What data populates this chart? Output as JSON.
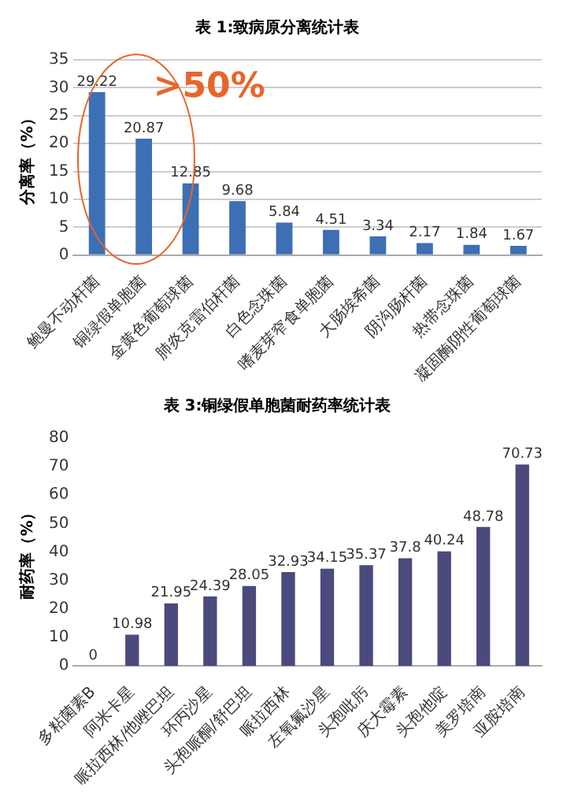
{
  "chart_data": [
    {
      "type": "bar",
      "title": "表 1:致病原分离统计表",
      "ylabel": "分离率（%）",
      "categories": [
        "鲍曼不动杆菌",
        "铜绿假单胞菌",
        "金黄色葡萄球菌",
        "肺炎克雷伯杆菌",
        "白色念珠菌",
        "嗜麦芽窄食单胞菌",
        "大肠埃希菌",
        "阴沟肠杆菌",
        "热带念珠菌",
        "凝固酶阴性葡萄球菌"
      ],
      "values": [
        29.22,
        20.87,
        12.85,
        9.68,
        5.84,
        4.51,
        3.34,
        2.17,
        1.84,
        1.67
      ],
      "color": "#3d6fb5",
      "ylim": [
        0,
        35
      ],
      "yticks": [
        0,
        5,
        10,
        15,
        20,
        25,
        30,
        35
      ],
      "grid": "y",
      "data_labels": true,
      "annotations": [
        ">50%"
      ]
    },
    {
      "type": "bar",
      "title": "表 3:铜绿假单胞菌耐药率统计表",
      "ylabel": "耐药率（%）",
      "categories": [
        "多粘菌素B",
        "阿米卡星",
        "哌拉西林/他唑巴坦",
        "环丙沙星",
        "头孢哌酮/舒巴坦",
        "哌拉西林",
        "左氧氟沙星",
        "头孢吡肟",
        "庆大霉素",
        "头孢他啶",
        "美罗培南",
        "亚胺培南"
      ],
      "values": [
        0,
        10.98,
        21.95,
        24.39,
        28.05,
        32.93,
        34.15,
        35.37,
        37.8,
        40.24,
        48.78,
        70.73
      ],
      "color": "#4b4a7c",
      "ylim": [
        0,
        80
      ],
      "yticks": [
        0,
        10,
        20,
        30,
        40,
        50,
        60,
        70,
        80
      ],
      "data_labels": true
    }
  ]
}
